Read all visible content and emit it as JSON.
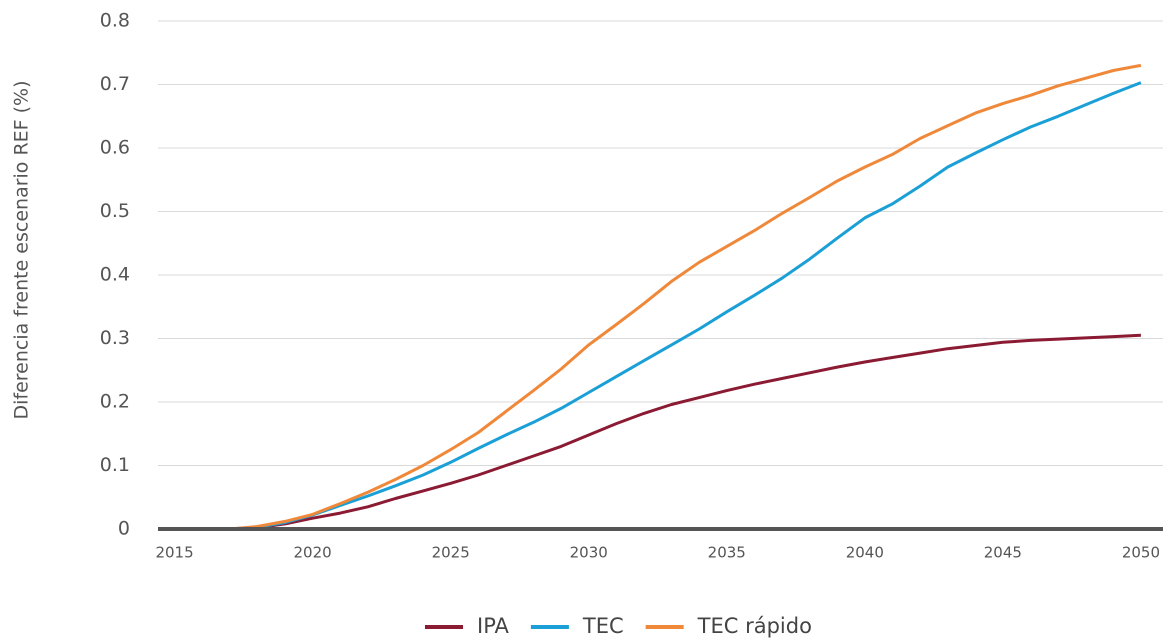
{
  "chart_data": {
    "type": "line",
    "y_label": "Diferencia frente escenario REF (%)",
    "x": [
      2015,
      2016,
      2017,
      2018,
      2019,
      2020,
      2021,
      2022,
      2023,
      2024,
      2025,
      2026,
      2027,
      2028,
      2029,
      2030,
      2031,
      2032,
      2033,
      2034,
      2035,
      2036,
      2037,
      2038,
      2039,
      2040,
      2041,
      2042,
      2043,
      2044,
      2045,
      2046,
      2047,
      2048,
      2049,
      2050
    ],
    "series": [
      {
        "name": "IPA",
        "color": "#8b1a33",
        "values": [
          0,
          0,
          0,
          0.002,
          0.008,
          0.017,
          0.025,
          0.035,
          0.048,
          0.06,
          0.072,
          0.085,
          0.1,
          0.115,
          0.13,
          0.148,
          0.166,
          0.182,
          0.196,
          0.207,
          0.218,
          0.228,
          0.237,
          0.246,
          0.255,
          0.263,
          0.27,
          0.277,
          0.284,
          0.289,
          0.294,
          0.297,
          0.299,
          0.301,
          0.303,
          0.305
        ]
      },
      {
        "name": "TEC",
        "color": "#1a9fd6",
        "values": [
          0,
          0,
          0,
          0.003,
          0.01,
          0.022,
          0.037,
          0.052,
          0.068,
          0.085,
          0.105,
          0.127,
          0.148,
          0.168,
          0.19,
          0.215,
          0.24,
          0.265,
          0.29,
          0.315,
          0.342,
          0.368,
          0.395,
          0.425,
          0.458,
          0.49,
          0.512,
          0.54,
          0.57,
          0.592,
          0.613,
          0.633,
          0.65,
          0.668,
          0.686,
          0.703
        ]
      },
      {
        "name": "TEC rápido",
        "color": "#f0883a",
        "values": [
          0,
          0,
          0,
          0.004,
          0.012,
          0.023,
          0.04,
          0.058,
          0.078,
          0.1,
          0.125,
          0.152,
          0.185,
          0.218,
          0.252,
          0.29,
          0.322,
          0.355,
          0.39,
          0.42,
          0.445,
          0.47,
          0.497,
          0.522,
          0.548,
          0.57,
          0.59,
          0.615,
          0.635,
          0.655,
          0.67,
          0.683,
          0.698,
          0.71,
          0.722,
          0.73
        ]
      }
    ],
    "xlim": [
      2014.4,
      2050.8
    ],
    "xticks": [
      2015,
      2020,
      2025,
      2030,
      2035,
      2040,
      2045,
      2050
    ],
    "ylim": [
      0,
      0.8
    ],
    "yticks": [
      0,
      0.1,
      0.2,
      0.3,
      0.4,
      0.5,
      0.6,
      0.7,
      0.8
    ],
    "grid": true,
    "legend": "bottom"
  }
}
